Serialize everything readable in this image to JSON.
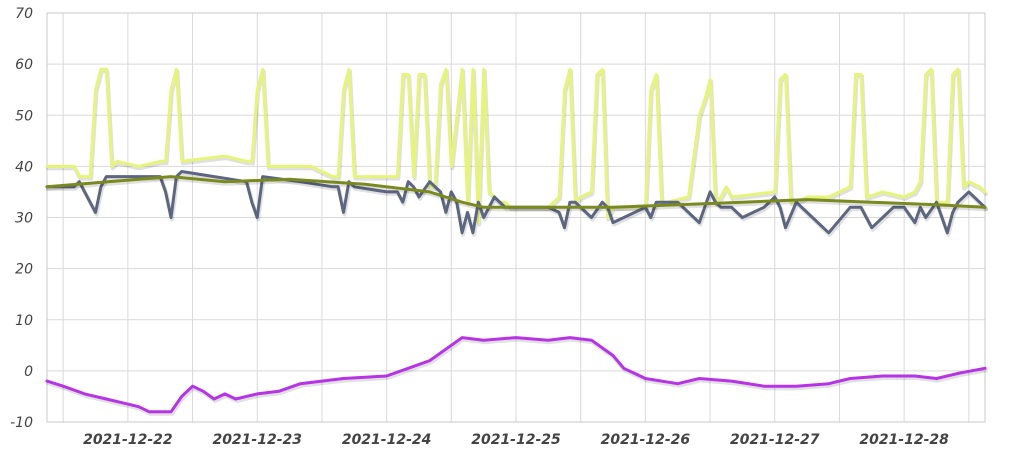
{
  "chart_data": {
    "type": "line",
    "title": "",
    "xlabel": "",
    "ylabel": "",
    "ylim": [
      -10,
      70
    ],
    "xlim": [
      "2021-12-21 09:00",
      "2021-12-28 15:00"
    ],
    "grid": true,
    "legend": "none",
    "y_ticks": [
      "70",
      "60",
      "50",
      "40",
      "30",
      "20",
      "10",
      "0",
      "-10"
    ],
    "x_ticks": [
      "2021-12-22",
      "2021-12-23",
      "2021-12-24",
      "2021-12-25",
      "2021-12-26",
      "2021-12-27",
      "2021-12-28"
    ],
    "series": [
      {
        "color": "#e6f57a",
        "x": [
          "2021-12-21 09:00",
          "2021-12-21 14:00",
          "2021-12-21 15:00",
          "2021-12-21 17:00",
          "2021-12-21 18:00",
          "2021-12-21 19:00",
          "2021-12-21 20:00",
          "2021-12-21 21:00",
          "2021-12-21 22:00",
          "2021-12-22 02:00",
          "2021-12-22 06:00",
          "2021-12-22 07:00",
          "2021-12-22 08:00",
          "2021-12-22 09:00",
          "2021-12-22 10:00",
          "2021-12-22 18:00",
          "2021-12-22 22:00",
          "2021-12-22 23:00",
          "2021-12-23 00:00",
          "2021-12-23 01:00",
          "2021-12-23 02:00",
          "2021-12-23 10:00",
          "2021-12-23 14:00",
          "2021-12-23 15:00",
          "2021-12-23 16:00",
          "2021-12-23 17:00",
          "2021-12-23 18:00",
          "2021-12-23 22:00",
          "2021-12-24 02:00",
          "2021-12-24 03:00",
          "2021-12-24 04:00",
          "2021-12-24 05:00",
          "2021-12-24 06:00",
          "2021-12-24 07:00",
          "2021-12-24 08:00",
          "2021-12-24 09:00",
          "2021-12-24 10:00",
          "2021-12-24 11:00",
          "2021-12-24 12:00",
          "2021-12-24 14:00",
          "2021-12-24 15:00",
          "2021-12-24 16:00",
          "2021-12-24 17:00",
          "2021-12-24 18:00",
          "2021-12-24 19:00",
          "2021-12-24 20:00",
          "2021-12-24 21:00",
          "2021-12-24 22:00",
          "2021-12-24 23:00",
          "2021-12-25 06:00",
          "2021-12-25 08:00",
          "2021-12-25 09:00",
          "2021-12-25 10:00",
          "2021-12-25 11:00",
          "2021-12-25 12:00",
          "2021-12-25 14:00",
          "2021-12-25 15:00",
          "2021-12-25 16:00",
          "2021-12-25 17:00",
          "2021-12-25 18:00",
          "2021-12-26 00:00",
          "2021-12-26 01:00",
          "2021-12-26 02:00",
          "2021-12-26 03:00",
          "2021-12-26 04:00",
          "2021-12-26 08:00",
          "2021-12-26 10:00",
          "2021-12-26 11:00",
          "2021-12-26 12:00",
          "2021-12-26 13:00",
          "2021-12-26 14:00",
          "2021-12-26 15:00",
          "2021-12-26 16:00",
          "2021-12-27 00:00",
          "2021-12-27 01:00",
          "2021-12-27 02:00",
          "2021-12-27 03:00",
          "2021-12-27 04:00",
          "2021-12-27 06:00",
          "2021-12-27 10:00",
          "2021-12-27 12:00",
          "2021-12-27 14:00",
          "2021-12-27 15:00",
          "2021-12-27 16:00",
          "2021-12-27 17:00",
          "2021-12-27 20:00",
          "2021-12-28 00:00",
          "2021-12-28 02:00",
          "2021-12-28 03:00",
          "2021-12-28 04:00",
          "2021-12-28 05:00",
          "2021-12-28 06:00",
          "2021-12-28 08:00",
          "2021-12-28 09:00",
          "2021-12-28 10:00",
          "2021-12-28 11:00",
          "2021-12-28 12:00",
          "2021-12-28 14:00",
          "2021-12-28 15:00"
        ],
        "y": [
          40,
          40,
          38,
          38,
          55,
          59,
          59,
          40,
          41,
          40,
          41,
          41,
          55,
          59,
          41,
          42,
          41,
          41,
          55,
          59,
          40,
          40,
          38,
          38,
          55,
          59,
          38,
          38,
          38,
          58,
          58,
          38,
          58,
          58,
          36,
          36,
          56,
          59,
          40,
          59,
          33,
          59,
          29,
          59,
          35,
          34,
          33,
          33,
          32,
          32,
          34,
          55,
          59,
          33,
          34,
          35,
          58,
          59,
          30,
          32,
          32,
          55,
          58,
          33,
          33,
          34,
          50,
          53,
          57,
          33,
          34,
          36,
          34,
          35,
          57,
          58,
          33,
          33,
          34,
          34,
          35,
          36,
          58,
          58,
          34,
          35,
          34,
          35,
          37,
          58,
          59,
          33,
          33,
          58,
          59,
          36,
          37,
          36,
          35
        ]
      },
      {
        "color": "#5c6680",
        "x": [
          "2021-12-21 09:00",
          "2021-12-21 14:00",
          "2021-12-21 15:00",
          "2021-12-21 17:00",
          "2021-12-21 18:00",
          "2021-12-21 19:00",
          "2021-12-21 20:00",
          "2021-12-22 00:00",
          "2021-12-22 06:00",
          "2021-12-22 07:00",
          "2021-12-22 08:00",
          "2021-12-22 09:00",
          "2021-12-22 10:00",
          "2021-12-22 16:00",
          "2021-12-22 22:00",
          "2021-12-22 23:00",
          "2021-12-23 00:00",
          "2021-12-23 01:00",
          "2021-12-23 08:00",
          "2021-12-23 14:00",
          "2021-12-23 15:00",
          "2021-12-23 16:00",
          "2021-12-23 17:00",
          "2021-12-23 18:00",
          "2021-12-24 00:00",
          "2021-12-24 02:00",
          "2021-12-24 03:00",
          "2021-12-24 04:00",
          "2021-12-24 05:00",
          "2021-12-24 06:00",
          "2021-12-24 08:00",
          "2021-12-24 10:00",
          "2021-12-24 11:00",
          "2021-12-24 12:00",
          "2021-12-24 13:00",
          "2021-12-24 14:00",
          "2021-12-24 15:00",
          "2021-12-24 16:00",
          "2021-12-24 17:00",
          "2021-12-24 18:00",
          "2021-12-24 20:00",
          "2021-12-24 22:00",
          "2021-12-25 06:00",
          "2021-12-25 08:00",
          "2021-12-25 09:00",
          "2021-12-25 10:00",
          "2021-12-25 11:00",
          "2021-12-25 12:00",
          "2021-12-25 14:00",
          "2021-12-25 16:00",
          "2021-12-25 17:00",
          "2021-12-25 18:00",
          "2021-12-26 00:00",
          "2021-12-26 01:00",
          "2021-12-26 02:00",
          "2021-12-26 03:00",
          "2021-12-26 06:00",
          "2021-12-26 10:00",
          "2021-12-26 12:00",
          "2021-12-26 13:00",
          "2021-12-26 14:00",
          "2021-12-26 16:00",
          "2021-12-26 18:00",
          "2021-12-26 22:00",
          "2021-12-27 00:00",
          "2021-12-27 01:00",
          "2021-12-27 02:00",
          "2021-12-27 04:00",
          "2021-12-27 06:00",
          "2021-12-27 10:00",
          "2021-12-27 14:00",
          "2021-12-27 16:00",
          "2021-12-27 17:00",
          "2021-12-27 18:00",
          "2021-12-27 22:00",
          "2021-12-28 00:00",
          "2021-12-28 02:00",
          "2021-12-28 03:00",
          "2021-12-28 04:00",
          "2021-12-28 06:00",
          "2021-12-28 08:00",
          "2021-12-28 09:00",
          "2021-12-28 10:00",
          "2021-12-28 12:00",
          "2021-12-28 15:00"
        ],
        "y": [
          36,
          36,
          37,
          33,
          31,
          36,
          38,
          38,
          38,
          35,
          30,
          38,
          39,
          38,
          37,
          33,
          30,
          38,
          37,
          36,
          36,
          31,
          37,
          36,
          35,
          35,
          33,
          37,
          36,
          34,
          37,
          35,
          31,
          35,
          33,
          27,
          31,
          27,
          33,
          30,
          34,
          32,
          32,
          31,
          28,
          33,
          33,
          32,
          30,
          33,
          32,
          29,
          32,
          30,
          33,
          33,
          33,
          29,
          35,
          33,
          32,
          32,
          30,
          32,
          34,
          32,
          28,
          33,
          31,
          27,
          32,
          32,
          30,
          28,
          32,
          32,
          29,
          32,
          30,
          33,
          27,
          31,
          33,
          35,
          32
        ]
      },
      {
        "color": "#7a8a1f",
        "x": [
          "2021-12-21 09:00",
          "2021-12-22 08:00",
          "2021-12-22 18:00",
          "2021-12-23 06:00",
          "2021-12-23 20:00",
          "2021-12-24 08:00",
          "2021-12-24 14:00",
          "2021-12-24 18:00",
          "2021-12-25 06:00",
          "2021-12-25 18:00",
          "2021-12-26 06:00",
          "2021-12-26 18:00",
          "2021-12-27 06:00",
          "2021-12-27 18:00",
          "2021-12-28 06:00",
          "2021-12-28 15:00"
        ],
        "y": [
          36,
          38,
          37,
          37.5,
          36.5,
          35,
          33,
          32,
          32,
          32,
          32.5,
          33,
          33.5,
          33,
          32.5,
          32
        ]
      },
      {
        "color": "#b633e6",
        "x": [
          "2021-12-21 09:00",
          "2021-12-21 12:00",
          "2021-12-21 16:00",
          "2021-12-21 20:00",
          "2021-12-22 00:00",
          "2021-12-22 02:00",
          "2021-12-22 04:00",
          "2021-12-22 06:00",
          "2021-12-22 08:00",
          "2021-12-22 10:00",
          "2021-12-22 12:00",
          "2021-12-22 14:00",
          "2021-12-22 16:00",
          "2021-12-22 18:00",
          "2021-12-22 20:00",
          "2021-12-22 22:00",
          "2021-12-23 00:00",
          "2021-12-23 04:00",
          "2021-12-23 08:00",
          "2021-12-23 12:00",
          "2021-12-23 16:00",
          "2021-12-24 00:00",
          "2021-12-24 04:00",
          "2021-12-24 08:00",
          "2021-12-24 12:00",
          "2021-12-24 14:00",
          "2021-12-24 18:00",
          "2021-12-25 00:00",
          "2021-12-25 06:00",
          "2021-12-25 10:00",
          "2021-12-25 14:00",
          "2021-12-25 18:00",
          "2021-12-25 20:00",
          "2021-12-26 00:00",
          "2021-12-26 06:00",
          "2021-12-26 10:00",
          "2021-12-26 16:00",
          "2021-12-26 22:00",
          "2021-12-27 00:00",
          "2021-12-27 04:00",
          "2021-12-27 10:00",
          "2021-12-27 14:00",
          "2021-12-27 20:00",
          "2021-12-28 02:00",
          "2021-12-28 06:00",
          "2021-12-28 10:00",
          "2021-12-28 15:00"
        ],
        "y": [
          -2,
          -3,
          -4.5,
          -5.5,
          -6.5,
          -7,
          -8,
          -8,
          -8,
          -5,
          -3,
          -4,
          -5.5,
          -4.5,
          -5.5,
          -5,
          -4.5,
          -4,
          -2.5,
          -2,
          -1.5,
          -1,
          0.5,
          2,
          5,
          6.5,
          6,
          6.5,
          6,
          6.5,
          6,
          3,
          0.5,
          -1.5,
          -2.5,
          -1.5,
          -2,
          -3,
          -3,
          -3,
          -2.5,
          -1.5,
          -1,
          -1,
          -1.5,
          -0.5,
          0.5
        ]
      }
    ]
  }
}
